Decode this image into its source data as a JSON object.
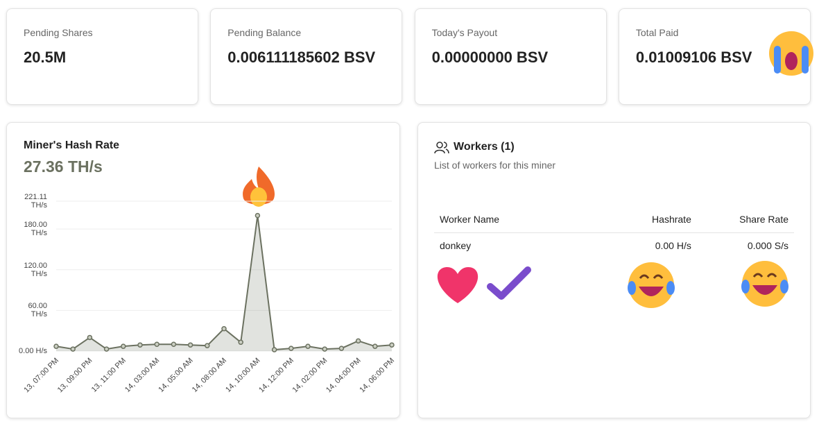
{
  "cards": [
    {
      "label": "Pending Shares",
      "value": "20.5M"
    },
    {
      "label": "Pending Balance",
      "value": "0.006111185602 BSV"
    },
    {
      "label": "Today's Payout",
      "value": "0.00000000 BSV"
    },
    {
      "label": "Total Paid",
      "value": "0.01009106 BSV"
    }
  ],
  "hash_rate": {
    "title": "Miner's Hash Rate",
    "value": "27.36 TH/s"
  },
  "chart_data": {
    "type": "area",
    "categories": [
      "13, 07:00 PM",
      null,
      "13, 09:00 PM",
      null,
      "13, 11:00 PM",
      null,
      "14, 03:00 AM",
      null,
      "14, 05:00 AM",
      null,
      "14, 08:00 AM",
      null,
      "14, 10:00 AM",
      null,
      "14, 12:00 PM",
      null,
      "14, 02:00 PM",
      null,
      "14, 04:00 PM",
      null,
      "14, 06:00 PM"
    ],
    "values": [
      7,
      3,
      20,
      3,
      7,
      9,
      10,
      10,
      9,
      8,
      33,
      13,
      200,
      2,
      4,
      7,
      3,
      4,
      15,
      7,
      9
    ],
    "color": "#6b7160",
    "ylim": [
      0,
      221.11
    ],
    "yticks": [
      {
        "value": 0,
        "label": "0.00 H/s"
      },
      {
        "value": 60,
        "label": "60.00 TH/s"
      },
      {
        "value": 120,
        "label": "120.00 TH/s"
      },
      {
        "value": 180,
        "label": "180.00 TH/s"
      },
      {
        "value": 221.11,
        "label": "221.11 TH/s"
      }
    ],
    "grid": true
  },
  "workers": {
    "title": "Workers (1)",
    "subtitle": "List of workers for this miner",
    "columns": [
      "Worker Name",
      "Hashrate",
      "Share Rate"
    ],
    "rows": [
      [
        "donkey",
        "0.00 H/s",
        "0.000 S/s"
      ]
    ]
  }
}
